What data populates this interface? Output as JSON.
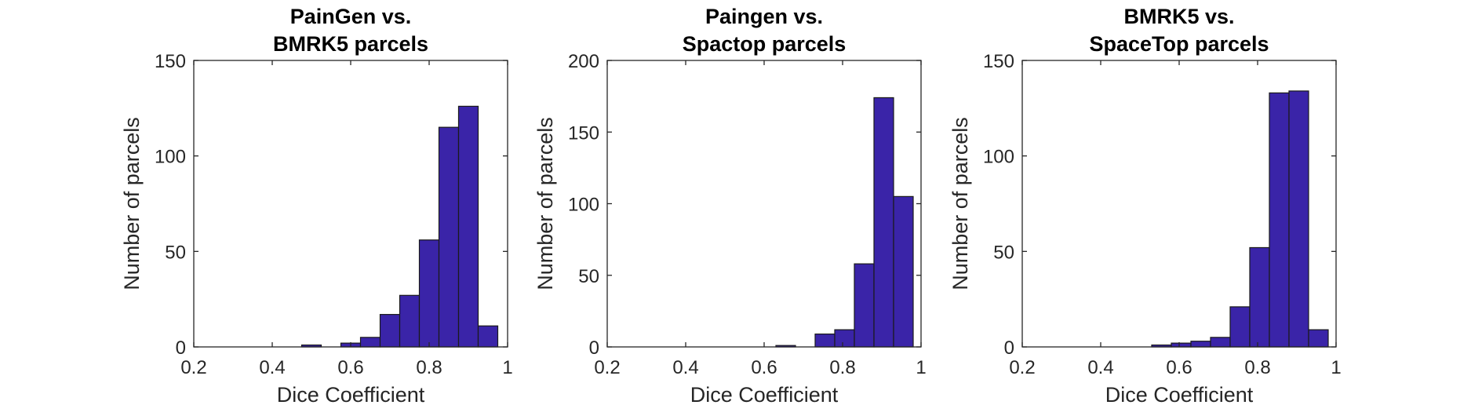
{
  "chart_data": [
    {
      "type": "bar",
      "title": [
        "PainGen vs.",
        "BMRK5 parcels"
      ],
      "xlabel": "Dice Coefficient",
      "ylabel": "Number of parcels",
      "xlim": [
        0.2,
        1
      ],
      "ylim": [
        0,
        150
      ],
      "xticks": [
        0.2,
        0.4,
        0.6,
        0.8,
        1
      ],
      "xtick_labels": [
        "0.2",
        "0.4",
        "0.6",
        "0.8",
        "1"
      ],
      "yticks": [
        0,
        50,
        100,
        150
      ],
      "ytick_labels": [
        "0",
        "50",
        "100",
        "150"
      ],
      "bin_width": 0.05,
      "bin_starts": [
        0.475,
        0.575,
        0.625,
        0.675,
        0.725,
        0.775,
        0.825,
        0.875,
        0.925
      ],
      "values": [
        1,
        2,
        5,
        17,
        27,
        56,
        115,
        126,
        11
      ],
      "bar_color": "#3a24a8"
    },
    {
      "type": "bar",
      "title": [
        "Paingen vs.",
        "Spactop parcels"
      ],
      "xlabel": "Dice Coefficient",
      "ylabel": "Number of parcels",
      "xlim": [
        0.2,
        1
      ],
      "ylim": [
        0,
        200
      ],
      "xticks": [
        0.2,
        0.4,
        0.6,
        0.8,
        1
      ],
      "xtick_labels": [
        "0.2",
        "0.4",
        "0.6",
        "0.8",
        "1"
      ],
      "yticks": [
        0,
        50,
        100,
        150,
        200
      ],
      "ytick_labels": [
        "0",
        "50",
        "100",
        "150",
        "200"
      ],
      "bin_width": 0.05,
      "bin_starts": [
        0.63,
        0.73,
        0.78,
        0.83,
        0.88,
        0.93
      ],
      "values": [
        1,
        9,
        12,
        58,
        174,
        105
      ],
      "bar_color": "#3a24a8"
    },
    {
      "type": "bar",
      "title": [
        "BMRK5 vs.",
        "SpaceTop parcels"
      ],
      "xlabel": "Dice Coefficient",
      "ylabel": "Number of parcels",
      "xlim": [
        0.2,
        1
      ],
      "ylim": [
        0,
        150
      ],
      "xticks": [
        0.2,
        0.4,
        0.6,
        0.8,
        1
      ],
      "xtick_labels": [
        "0.2",
        "0.4",
        "0.6",
        "0.8",
        "1"
      ],
      "yticks": [
        0,
        50,
        100,
        150
      ],
      "ytick_labels": [
        "0",
        "50",
        "100",
        "150"
      ],
      "bin_width": 0.05,
      "bin_starts": [
        0.53,
        0.58,
        0.63,
        0.68,
        0.73,
        0.78,
        0.83,
        0.88,
        0.93
      ],
      "values": [
        1,
        2,
        3,
        5,
        21,
        52,
        133,
        134,
        9
      ],
      "bar_color": "#3a24a8"
    }
  ]
}
